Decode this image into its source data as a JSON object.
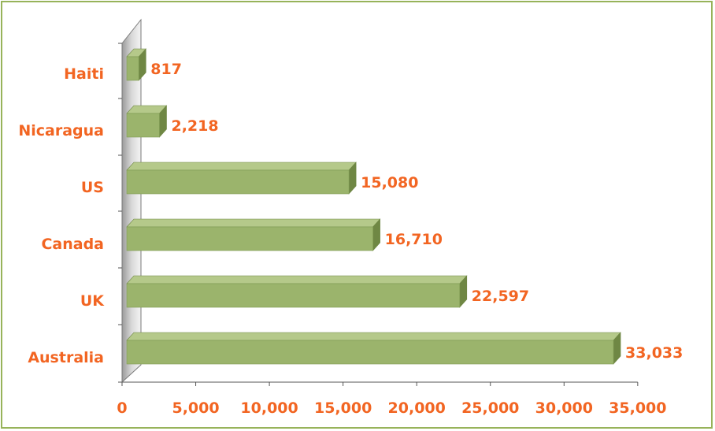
{
  "chart_data": {
    "type": "bar",
    "orientation": "horizontal",
    "title": "",
    "xlabel": "",
    "ylabel": "",
    "categories": [
      "Haiti",
      "Nicaragua",
      "US",
      "Canada",
      "UK",
      "Australia"
    ],
    "values": [
      817,
      2218,
      15080,
      16710,
      22597,
      33033
    ],
    "value_labels": [
      "817",
      "2,218",
      "15,080",
      "16,710",
      "22,597",
      "33,033"
    ],
    "xlim": [
      0,
      35000
    ],
    "xticks": [
      0,
      5000,
      10000,
      15000,
      20000,
      25000,
      30000,
      35000
    ],
    "xtick_labels": [
      "0",
      "5,000",
      "10,000",
      "15,000",
      "20,000",
      "25,000",
      "30,000",
      "35,000"
    ],
    "grid": false,
    "legend": "none",
    "colors": {
      "bar": "#9bb46c",
      "bar_top": "#b5c98a",
      "bar_side": "#6f8744",
      "label": "#f26522",
      "border": "#97b35a",
      "wall": "#c8c8c8"
    }
  }
}
